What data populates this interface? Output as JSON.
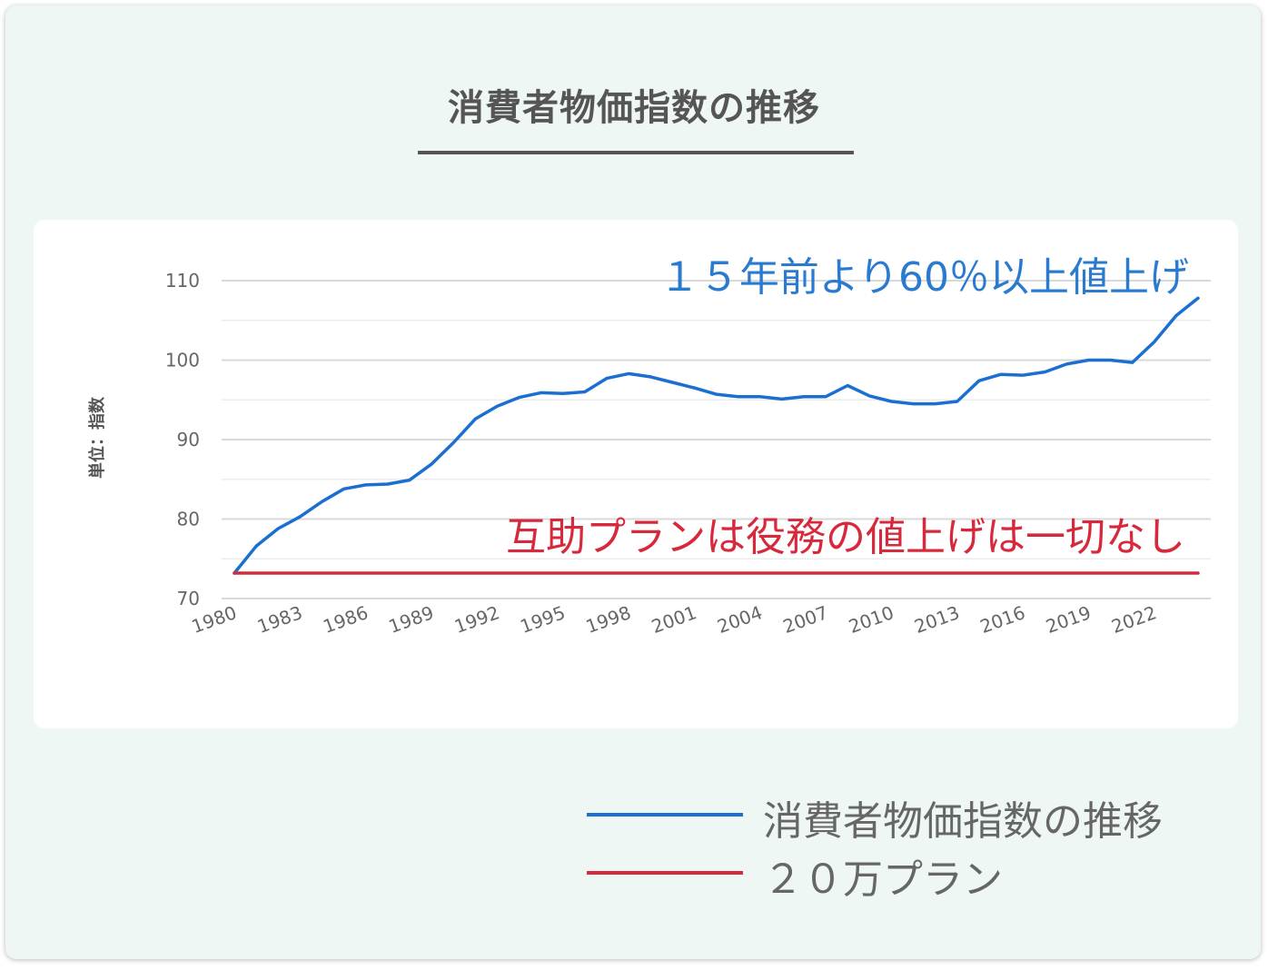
{
  "title": "消費者物価指数の推移",
  "colors": {
    "cpi": "#1a6fd1",
    "plan": "#d62a3c",
    "annotation_cpi": "#2a7bd0",
    "annotation_plan": "#d62a3c"
  },
  "legend": {
    "items": [
      {
        "label": "消費者物価指数の推移",
        "color": "#1a6fd1"
      },
      {
        "label": "２０万プラン",
        "color": "#d62a3c"
      }
    ]
  },
  "chart_data": {
    "type": "line",
    "ylabel": "単位：指数",
    "ylim": [
      70,
      110
    ],
    "y_ticks": [
      70,
      80,
      90,
      100,
      110
    ],
    "x_start": 1980,
    "x_end": 2024,
    "x_tick_labels": [
      "1980",
      "1983",
      "1986",
      "1989",
      "1992",
      "1995",
      "1998",
      "2001",
      "2004",
      "2007",
      "2010",
      "2013",
      "2016",
      "2019",
      "2022"
    ],
    "grid": true,
    "series": [
      {
        "name": "消費者物価指数の推移",
        "color": "#1a6fd1",
        "x": [
          1980,
          1981,
          1982,
          1983,
          1984,
          1985,
          1986,
          1987,
          1988,
          1989,
          1990,
          1991,
          1992,
          1993,
          1994,
          1995,
          1996,
          1997,
          1998,
          1999,
          2000,
          2001,
          2002,
          2003,
          2004,
          2005,
          2006,
          2007,
          2008,
          2009,
          2010,
          2011,
          2012,
          2013,
          2014,
          2015,
          2016,
          2017,
          2018,
          2019,
          2020,
          2021,
          2022,
          2023,
          2024
        ],
        "values": [
          73.2,
          76.6,
          78.8,
          80.3,
          82.2,
          83.8,
          84.3,
          84.4,
          84.9,
          86.9,
          89.6,
          92.6,
          94.2,
          95.3,
          95.9,
          95.8,
          96.0,
          97.7,
          98.3,
          97.9,
          97.2,
          96.5,
          95.7,
          95.4,
          95.4,
          95.1,
          95.4,
          95.4,
          96.8,
          95.5,
          94.8,
          94.5,
          94.5,
          94.8,
          97.4,
          98.2,
          98.1,
          98.5,
          99.5,
          100.0,
          100.0,
          99.7,
          102.3,
          105.6,
          107.8
        ]
      },
      {
        "name": "２０万プラン",
        "color": "#d62a3c",
        "x": [
          1980,
          2024
        ],
        "values": [
          73.2,
          73.2
        ]
      }
    ],
    "annotations": [
      {
        "text": "１５年前より60％以上値上げ",
        "color": "#2a7bd0"
      },
      {
        "text": "互助プランは役務の値上げは一切なし",
        "color": "#d62a3c"
      }
    ]
  }
}
